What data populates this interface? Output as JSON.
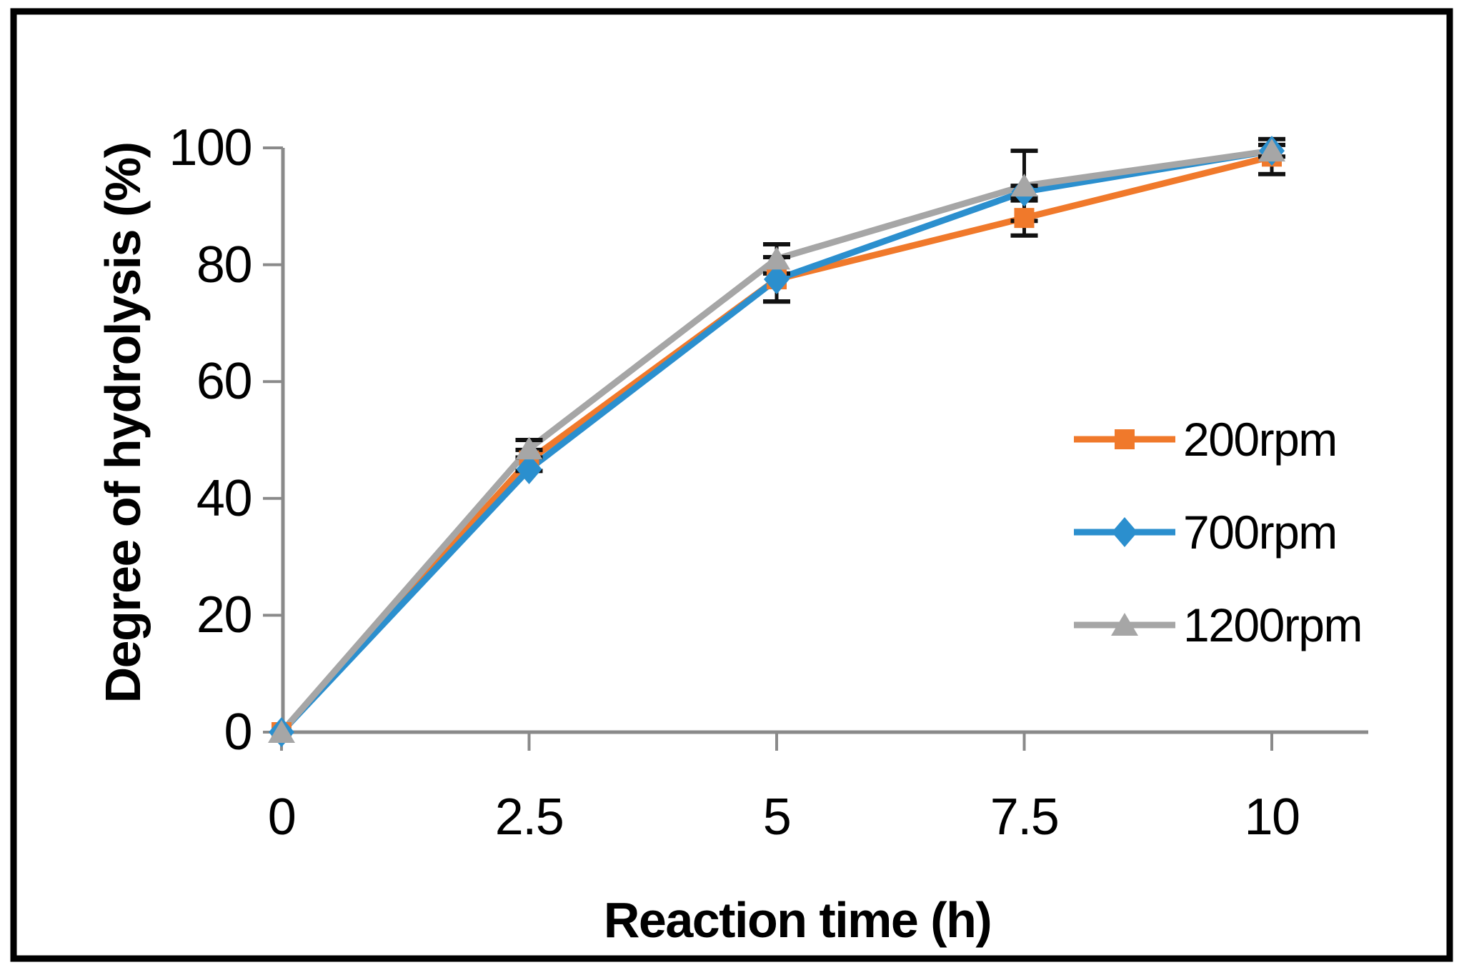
{
  "figure": {
    "background": "#ffffff",
    "frame_color": "#000000",
    "axis_color": "#8A8A8A",
    "error_bar_color": "#111111",
    "text_color": "#000000"
  },
  "chart_data": {
    "type": "line",
    "title": "",
    "xlabel": "Reaction time (h)",
    "ylabel": "Degree of hydrolysis (%)",
    "x": [
      0,
      2.5,
      5,
      7.5,
      10
    ],
    "xtick_labels": [
      "0",
      "2.5",
      "5",
      "7.5",
      "10"
    ],
    "yticks": [
      0,
      20,
      40,
      60,
      80,
      100
    ],
    "ytick_labels": [
      "0",
      "20",
      "40",
      "60",
      "80",
      "100"
    ],
    "ylim": [
      0,
      100
    ],
    "xlim": [
      0,
      11
    ],
    "grid": false,
    "legend_position": "right-middle",
    "series": [
      {
        "name": "200rpm",
        "color": "#F0792B",
        "marker": "square",
        "values": [
          0,
          46.5,
          77.5,
          88,
          98.5
        ],
        "yerr": [
          0,
          1.8,
          3.8,
          3,
          3
        ]
      },
      {
        "name": "700rpm",
        "color": "#2B8FCE",
        "marker": "diamond",
        "values": [
          0,
          45,
          77.5,
          92.5,
          99.5
        ],
        "yerr": [
          0,
          0,
          3.8,
          1,
          0
        ]
      },
      {
        "name": "1200rpm",
        "color": "#A6A6A6",
        "marker": "triangle",
        "values": [
          0,
          48.5,
          81,
          93.5,
          99.5
        ],
        "yerr": [
          0,
          1.5,
          2.5,
          6,
          1
        ]
      }
    ]
  }
}
